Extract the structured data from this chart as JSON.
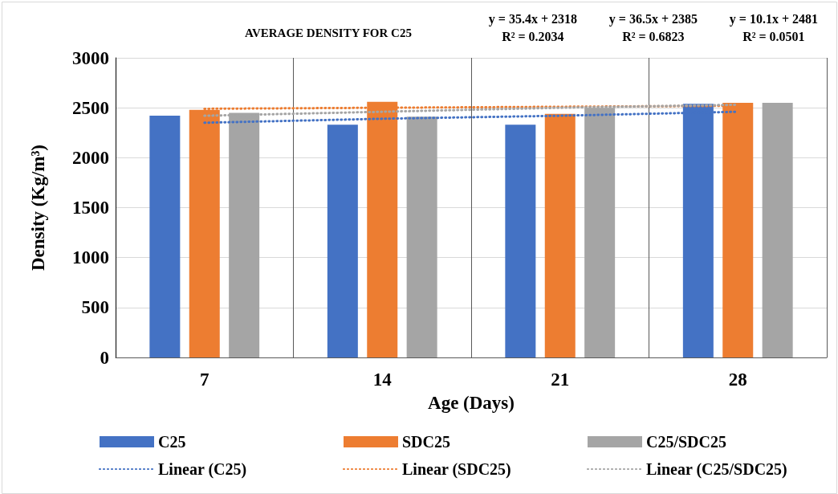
{
  "chart_data": {
    "type": "bar",
    "title": "AVERAGE DENSITY FOR C25",
    "xlabel": "Age (Days)",
    "ylabel": "Density (Kg/m³)",
    "categories": [
      "7",
      "14",
      "21",
      "28"
    ],
    "series": [
      {
        "name": "C25",
        "color": "#4472c4",
        "values": [
          2420,
          2330,
          2330,
          2540
        ]
      },
      {
        "name": "SDC25",
        "color": "#ed7d31",
        "values": [
          2480,
          2560,
          2440,
          2550
        ]
      },
      {
        "name": "C25/SDC25",
        "color": "#a5a5a5",
        "values": [
          2450,
          2410,
          2500,
          2550
        ]
      },
      {
        "name": "Linear (C25)",
        "type": "line",
        "line_style": "dotted",
        "color": "#4472c4",
        "values": [
          2350,
          2390,
          2420,
          2460
        ]
      },
      {
        "name": "Linear (SDC25)",
        "type": "line",
        "line_style": "dotted",
        "color": "#ed7d31",
        "values": [
          2490,
          2500,
          2510,
          2520
        ]
      },
      {
        "name": "Linear (C25/SDC25)",
        "type": "line",
        "line_style": "dotted",
        "color": "#a5a5a5",
        "values": [
          2420,
          2460,
          2500,
          2530
        ]
      }
    ],
    "ylim": [
      0,
      3000
    ],
    "yticks": [
      0,
      500,
      1000,
      1500,
      2000,
      2500,
      3000
    ],
    "grid": true,
    "legend": "bottom",
    "annotations": [
      "y = 35.4x + 2318\nR² = 0.2034",
      "y = 36.5x + 2385\nR² = 0.6823",
      "y = 10.1x + 2481\nR² = 0.0501"
    ]
  }
}
